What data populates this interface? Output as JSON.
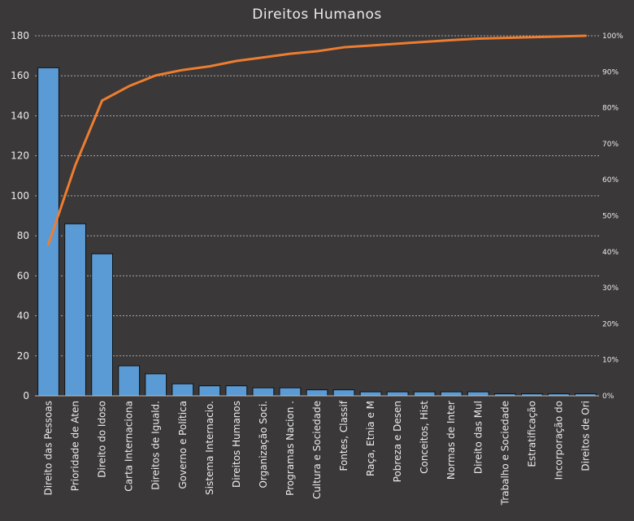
{
  "chart_data": {
    "type": "bar",
    "title": "Direitos Humanos",
    "categories": [
      "Direito das Pessoas",
      "Prioridade de Aten",
      "Direito do Idoso",
      "Carta Internaciona",
      "Direitos de Iguald.",
      "Governo e Política",
      "Sistema Internacio.",
      "Direitos Humanos",
      "Organização Soci.",
      "Programas Nacion .",
      "Cultura e Sociedade",
      "Fontes, Classif",
      "Raça, Etnia e M",
      "Pobreza e Desen",
      "Conceitos, Hist",
      "Normas de Inter",
      "Direito das Mul",
      "Trabalho e Sociedade",
      "Estratificação",
      "Incorporação do",
      "Direitos de Ori"
    ],
    "series": [
      {
        "type": "bar",
        "values": [
          164,
          86,
          71,
          15,
          11,
          6,
          5,
          5,
          4,
          4,
          3,
          3,
          2,
          2,
          2,
          2,
          2,
          1,
          1,
          1,
          1
        ],
        "axis": "left",
        "color": "#5b9bd5"
      },
      {
        "type": "line",
        "values": [
          42,
          64,
          82,
          86,
          89,
          90.5,
          91.5,
          93,
          94,
          95,
          95.7,
          96.8,
          97.3,
          97.8,
          98.3,
          98.8,
          99.2,
          99.4,
          99.6,
          99.8,
          100
        ],
        "axis": "right",
        "unit": "%",
        "color": "#ed7d31"
      }
    ],
    "y_left": {
      "ylim": [
        0,
        180
      ],
      "ticks": [
        "0",
        "20",
        "40",
        "60",
        "80",
        "100",
        "120",
        "140",
        "160",
        "180"
      ]
    },
    "y_right": {
      "ylim": [
        0,
        100
      ],
      "ticks": [
        "0%",
        "10%",
        "20%",
        "30%",
        "40%",
        "50%",
        "60%",
        "70%",
        "80%",
        "90%",
        "100%"
      ]
    },
    "grid": true,
    "legend": "none",
    "background": "#3a3838"
  }
}
